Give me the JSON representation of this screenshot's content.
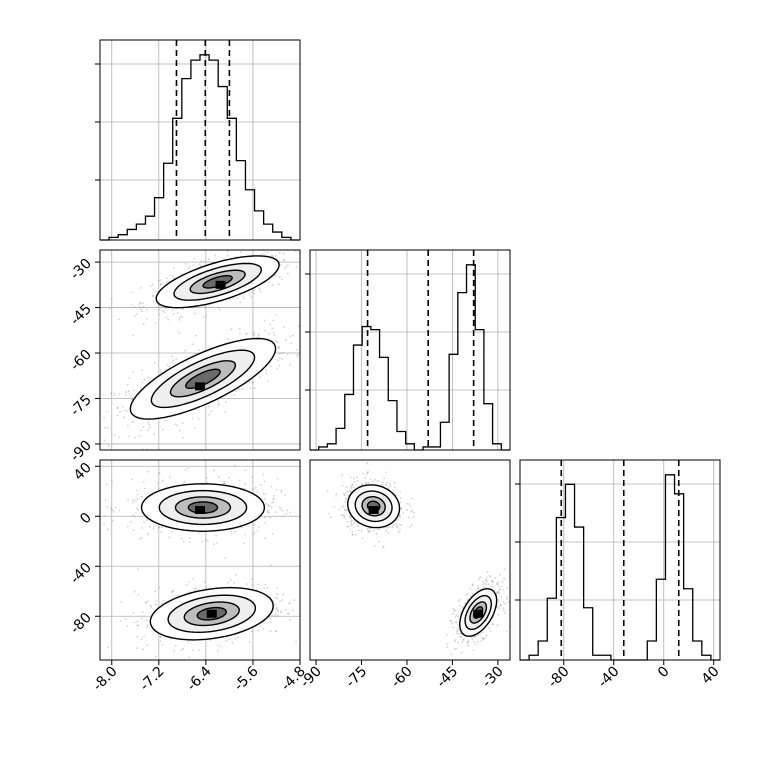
{
  "figure": {
    "type": "corner-plot",
    "background": "#ffffff"
  },
  "colors": {
    "hist": "#000000",
    "grid": "#b0b0b0",
    "points": "#7f7f7f",
    "contour": "#000000",
    "fill_dark": "#000000",
    "fill_light": "#d8d8d8"
  },
  "chart_data": [
    {
      "type": "histogram",
      "name": "p0 marginal",
      "grid": true,
      "bins_x": [
        -8.2,
        -4.8
      ],
      "counts": [
        0,
        1,
        2,
        4,
        6,
        9,
        16,
        29,
        46,
        61,
        68,
        70,
        68,
        58,
        46,
        30,
        19,
        11,
        6,
        3,
        1,
        0
      ],
      "quantile_lines": [
        -6.9,
        -6.41,
        -6.0
      ],
      "x_ticks": [
        "-8.0",
        "-7.2",
        "-6.4",
        "-5.6",
        "-4.8"
      ],
      "xlim": [
        -8.2,
        -4.8
      ]
    },
    {
      "type": "scatter-contour",
      "name": "p1 vs p0",
      "grid": true,
      "xlim": [
        -8.2,
        -4.8
      ],
      "ylim": [
        -92,
        -26
      ],
      "y_ticks": [
        "-30",
        "-45",
        "-60",
        "-75",
        "-90"
      ],
      "x_ticks": [
        "-8.0",
        "-7.2",
        "-6.4",
        "-5.6",
        "-4.8"
      ],
      "clusters": [
        {
          "center": [
            -6.2,
            -36.5
          ],
          "sx": 0.55,
          "sy": 4.5,
          "rho": 0.65,
          "peak": [
            -6.15,
            -37.5
          ]
        },
        {
          "center": [
            -6.45,
            -68.5
          ],
          "sx": 0.65,
          "sy": 7.0,
          "rho": 0.75,
          "peak": [
            -6.5,
            -71
          ]
        }
      ]
    },
    {
      "type": "histogram",
      "name": "p1 marginal",
      "grid": true,
      "bins_x": [
        -92,
        -26
      ],
      "counts": [
        0,
        1,
        2,
        7,
        18,
        34,
        40,
        39,
        30,
        16,
        6,
        2,
        0,
        1,
        1,
        9,
        31,
        51,
        60,
        39,
        15,
        2,
        0
      ],
      "quantile_lines": [
        -73,
        -53,
        -38
      ],
      "x_ticks": [
        "-90",
        "-75",
        "-60",
        "-45",
        "-30"
      ],
      "xlim": [
        -92,
        -26
      ]
    },
    {
      "type": "scatter-contour",
      "name": "p2 vs p0",
      "grid": true,
      "xlim": [
        -8.2,
        -4.8
      ],
      "ylim": [
        -115,
        45
      ],
      "y_ticks": [
        "40",
        "0",
        "-40",
        "-80"
      ],
      "x_ticks": [
        "-8.0",
        "-7.2",
        "-6.4",
        "-5.6",
        "-4.8"
      ],
      "clusters": [
        {
          "center": [
            -6.45,
            7
          ],
          "sx": 0.55,
          "sy": 10,
          "rho": 0.0,
          "peak": [
            -6.5,
            5
          ]
        },
        {
          "center": [
            -6.3,
            -78
          ],
          "sx": 0.55,
          "sy": 11,
          "rho": 0.3,
          "peak": [
            -6.3,
            -78
          ]
        }
      ]
    },
    {
      "type": "scatter-contour",
      "name": "p2 vs p1",
      "grid": false,
      "xlim": [
        -92,
        -26
      ],
      "ylim": [
        -115,
        45
      ],
      "x_ticks": [
        "-90",
        "-75",
        "-60",
        "-45",
        "-30"
      ],
      "clusters": [
        {
          "center": [
            -71,
            8
          ],
          "sx": 4.5,
          "sy": 9,
          "rho": -0.1,
          "peak": [
            -71,
            5
          ]
        },
        {
          "center": [
            -36.5,
            -77
          ],
          "sx": 3.2,
          "sy": 10,
          "rho": 0.5,
          "peak": [
            -36.5,
            -78
          ]
        }
      ]
    },
    {
      "type": "histogram",
      "name": "p2 marginal",
      "grid": true,
      "bins_x": [
        -115,
        45
      ],
      "counts": [
        0,
        1,
        4,
        13,
        30,
        37,
        28,
        11,
        1,
        1,
        0,
        0,
        0,
        0,
        4,
        17,
        39,
        35,
        15,
        4,
        1,
        0
      ],
      "quantile_lines": [
        -82,
        -32,
        12
      ],
      "x_ticks": [
        "-80",
        "-40",
        "0",
        "40"
      ],
      "xlim": [
        -115,
        45
      ]
    }
  ]
}
